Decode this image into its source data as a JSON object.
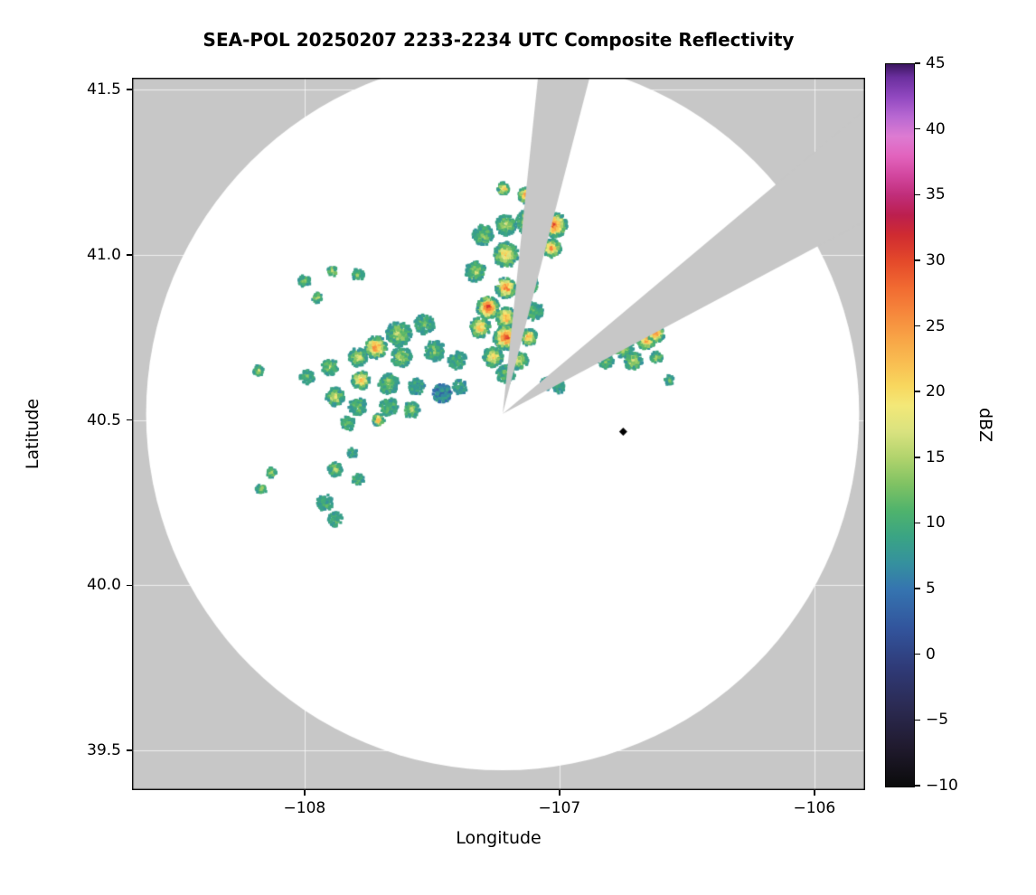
{
  "title": "SEA-POL 20250207 2233-2234 UTC Composite Reflectivity",
  "chart_data": {
    "type": "heatmap",
    "title": "SEA-POL 20250207 2233-2234 UTC Composite Reflectivity",
    "xlabel": "Longitude",
    "ylabel": "Latitude",
    "grid": true,
    "grid_color": "rgba(255,255,255,0.7)",
    "outside_color": "#c7c7c7",
    "coverage_color": "#ffffff",
    "xlim": [
      -108.677,
      -105.801
    ],
    "ylim": [
      39.38,
      41.536
    ],
    "xticks": [
      -108,
      -107,
      -106
    ],
    "xtick_labels": [
      "−108",
      "−107",
      "−106"
    ],
    "yticks": [
      39.5,
      40.0,
      40.5,
      41.0,
      41.5
    ],
    "ytick_labels": [
      "39.5",
      "40.0",
      "40.5",
      "41.0",
      "41.5"
    ],
    "colorbar": {
      "label": "dBZ",
      "min": -10,
      "max": 45,
      "ticks": [
        -10,
        -5,
        0,
        5,
        10,
        15,
        20,
        25,
        30,
        35,
        40,
        45
      ],
      "tick_labels": [
        "−10",
        "−5",
        "0",
        "5",
        "10",
        "15",
        "20",
        "25",
        "30",
        "35",
        "40",
        "45"
      ],
      "stops": [
        [
          -10,
          "#0b0b0b"
        ],
        [
          -7,
          "#201a2e"
        ],
        [
          -4,
          "#2b2a52"
        ],
        [
          -1,
          "#2f3a77"
        ],
        [
          2,
          "#32549c"
        ],
        [
          5,
          "#3574b0"
        ],
        [
          7,
          "#35919e"
        ],
        [
          9,
          "#3aa484"
        ],
        [
          11,
          "#4fb36c"
        ],
        [
          13,
          "#7fc263"
        ],
        [
          15,
          "#b0d36c"
        ],
        [
          17,
          "#d9e27f"
        ],
        [
          19,
          "#f3e878"
        ],
        [
          20.5,
          "#f8d75e"
        ],
        [
          22,
          "#f9c153"
        ],
        [
          24,
          "#f8a647"
        ],
        [
          26,
          "#f6883c"
        ],
        [
          28,
          "#f16a31"
        ],
        [
          30,
          "#e4492a"
        ],
        [
          32,
          "#cf2b31"
        ],
        [
          33.5,
          "#bc1f4e"
        ],
        [
          35,
          "#c02d79"
        ],
        [
          36.5,
          "#d2469e"
        ],
        [
          38,
          "#e263bd"
        ],
        [
          39.5,
          "#dd7bd2"
        ],
        [
          41,
          "#b868d2"
        ],
        [
          42.5,
          "#9148c0"
        ],
        [
          44,
          "#6b2f9e"
        ],
        [
          45,
          "#3b165f"
        ]
      ]
    },
    "radar": {
      "center_lon": -107.223,
      "center_lat": 40.519,
      "range_km": 120,
      "blocked_sectors_deg": [
        [
          6,
          14.5
        ],
        [
          50,
          62
        ]
      ],
      "site_marker": {
        "lon": -106.75,
        "lat": 40.465,
        "color": "#000000",
        "shape": "diamond"
      }
    },
    "echo_cells": {
      "format": [
        "lon",
        "lat",
        "radius_km",
        "peak_dbz"
      ],
      "cells": [
        [
          -107.22,
          41.2,
          1.8,
          25
        ],
        [
          -107.13,
          41.18,
          2.4,
          28
        ],
        [
          -107.07,
          41.15,
          3.0,
          30
        ],
        [
          -107.02,
          41.09,
          3.7,
          30
        ],
        [
          -107.12,
          41.1,
          3.7,
          20
        ],
        [
          -107.21,
          41.09,
          3.0,
          17
        ],
        [
          -107.3,
          41.06,
          3.0,
          14
        ],
        [
          -107.03,
          41.02,
          2.7,
          27
        ],
        [
          -107.21,
          41.0,
          3.7,
          22
        ],
        [
          -107.33,
          40.95,
          3.0,
          16
        ],
        [
          -108.0,
          40.92,
          1.8,
          13
        ],
        [
          -107.89,
          40.95,
          1.5,
          17
        ],
        [
          -107.79,
          40.94,
          1.8,
          13
        ],
        [
          -107.95,
          40.87,
          1.5,
          16
        ],
        [
          -107.21,
          40.9,
          3.0,
          29
        ],
        [
          -107.12,
          40.91,
          2.7,
          19
        ],
        [
          -107.28,
          40.84,
          3.3,
          32
        ],
        [
          -107.21,
          40.81,
          3.0,
          26
        ],
        [
          -107.1,
          40.83,
          2.7,
          12
        ],
        [
          -107.31,
          40.78,
          3.0,
          23
        ],
        [
          -107.21,
          40.75,
          3.7,
          31
        ],
        [
          -107.12,
          40.75,
          2.4,
          25
        ],
        [
          -107.26,
          40.69,
          3.0,
          22
        ],
        [
          -107.16,
          40.68,
          2.7,
          18
        ],
        [
          -107.21,
          40.64,
          2.7,
          13
        ],
        [
          -107.63,
          40.76,
          3.7,
          16
        ],
        [
          -107.53,
          40.79,
          3.0,
          13
        ],
        [
          -107.72,
          40.72,
          3.3,
          27
        ],
        [
          -107.79,
          40.69,
          2.7,
          18
        ],
        [
          -107.62,
          40.69,
          3.0,
          16
        ],
        [
          -107.49,
          40.71,
          3.0,
          13
        ],
        [
          -107.4,
          40.68,
          2.7,
          11
        ],
        [
          -107.9,
          40.66,
          2.4,
          15
        ],
        [
          -107.99,
          40.63,
          2.1,
          12
        ],
        [
          -108.18,
          40.65,
          1.5,
          16
        ],
        [
          -107.78,
          40.62,
          2.7,
          24
        ],
        [
          -107.67,
          40.61,
          3.0,
          15
        ],
        [
          -107.56,
          40.6,
          2.4,
          9
        ],
        [
          -107.46,
          40.58,
          2.7,
          6
        ],
        [
          -107.39,
          40.6,
          2.1,
          9
        ],
        [
          -107.88,
          40.57,
          2.7,
          18
        ],
        [
          -107.79,
          40.54,
          2.7,
          12
        ],
        [
          -107.67,
          40.54,
          2.7,
          13
        ],
        [
          -107.58,
          40.53,
          2.4,
          15
        ],
        [
          -107.71,
          40.5,
          1.8,
          24
        ],
        [
          -107.83,
          40.49,
          2.1,
          12
        ],
        [
          -107.81,
          40.4,
          1.5,
          12
        ],
        [
          -107.88,
          40.35,
          2.1,
          15
        ],
        [
          -107.79,
          40.32,
          1.8,
          12
        ],
        [
          -108.13,
          40.34,
          1.5,
          16
        ],
        [
          -108.17,
          40.29,
          1.5,
          15
        ],
        [
          -107.92,
          40.25,
          2.4,
          11
        ],
        [
          -107.88,
          40.2,
          2.1,
          12
        ],
        [
          -106.75,
          40.72,
          3.0,
          15
        ],
        [
          -106.66,
          40.74,
          2.7,
          26
        ],
        [
          -106.62,
          40.76,
          2.4,
          28
        ],
        [
          -106.71,
          40.68,
          2.7,
          17
        ],
        [
          -106.82,
          40.68,
          2.4,
          12
        ],
        [
          -106.62,
          40.69,
          1.8,
          16
        ],
        [
          -106.57,
          40.62,
          1.5,
          12
        ],
        [
          -107.05,
          40.61,
          1.8,
          8
        ],
        [
          -107.0,
          40.6,
          1.8,
          10
        ]
      ]
    }
  }
}
